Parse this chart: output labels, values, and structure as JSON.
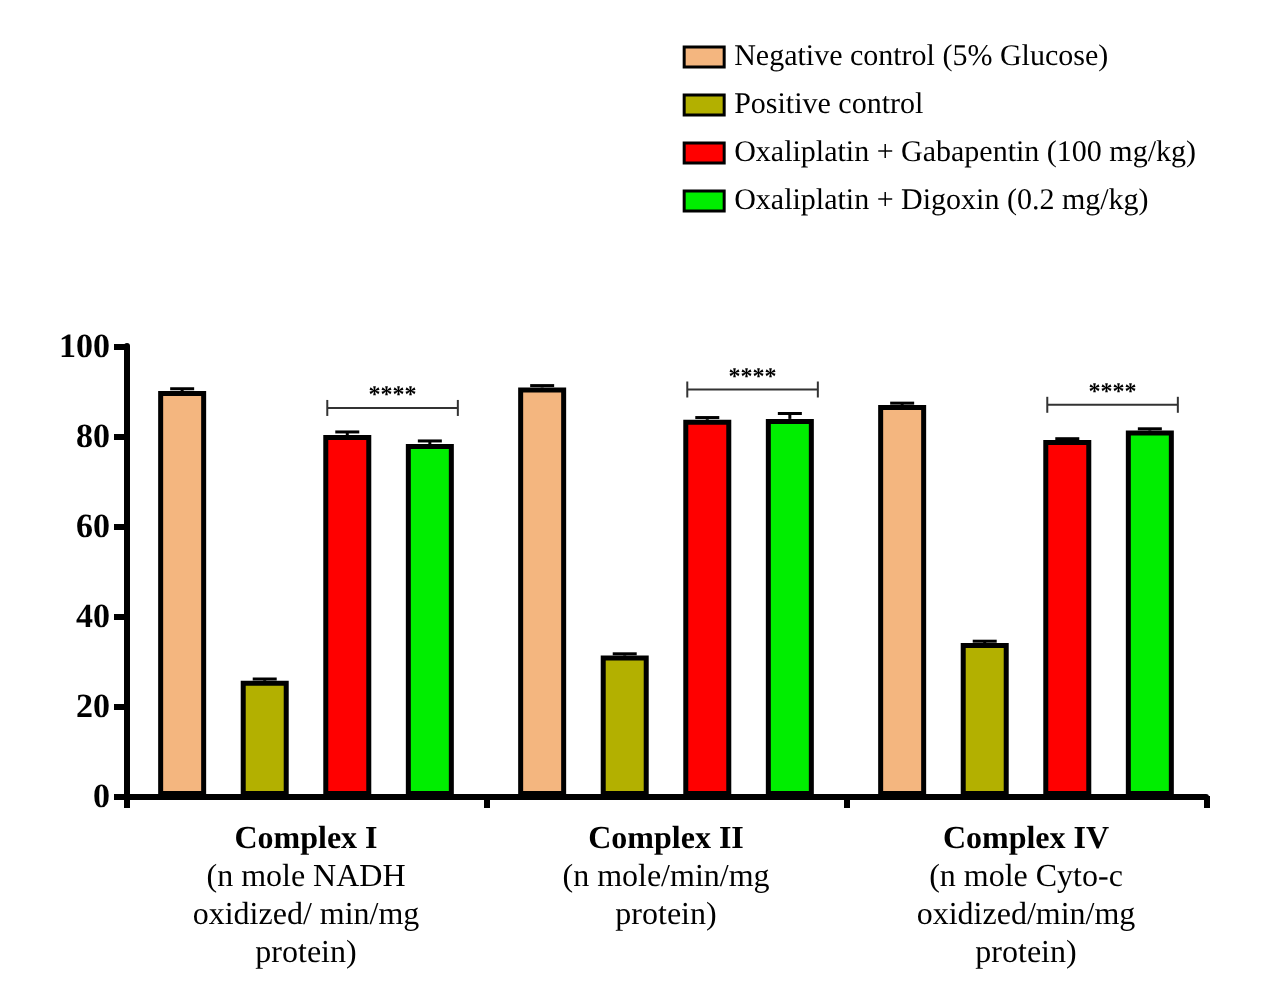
{
  "chart_data": {
    "type": "bar",
    "categories": [
      "Complex I\n(n mole NADH\noxidized/ min/mg\nprotein)",
      "Complex II\n(n mole/min/mg\nprotein)",
      "Complex IV\n(n mole Cyto-c\noxidized/min/mg\nprotein)"
    ],
    "series": [
      {
        "name": "Negative control (5% Glucose)",
        "color": "#f4b67f",
        "values": [
          90,
          90.8,
          86.9
        ],
        "errors": [
          0.5,
          0.4,
          0.4
        ]
      },
      {
        "name": "Positive control",
        "color": "#b3b000",
        "values": [
          25.6,
          31.2,
          34
        ],
        "errors": [
          0.4,
          0.4,
          0.4
        ]
      },
      {
        "name": "Oxaliplatin + Gabapentin (100 mg/kg)",
        "color": "#ff0000",
        "values": [
          80.2,
          83.6,
          79.1
        ],
        "errors": [
          0.7,
          0.5,
          0.3
        ]
      },
      {
        "name": "Oxaliplatin + Digoxin (0.2 mg/kg)",
        "color": "#00ee00",
        "values": [
          78.2,
          83.8,
          81.2
        ],
        "errors": [
          0.7,
          1.2,
          0.4
        ]
      }
    ],
    "ylim": [
      0,
      100
    ],
    "yticks": [
      0,
      20,
      40,
      60,
      80,
      100
    ],
    "grid": false,
    "legend": "top right",
    "annotations": [
      "****",
      "****",
      "****"
    ]
  }
}
